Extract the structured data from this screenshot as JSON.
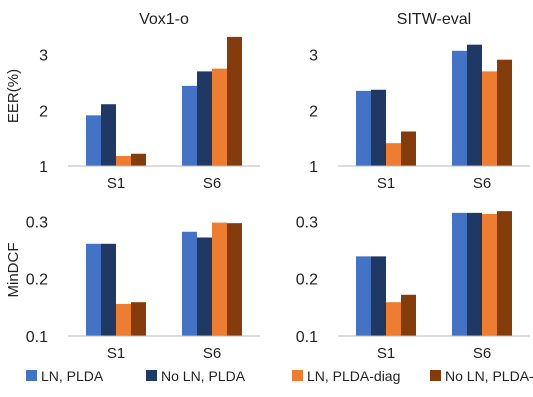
{
  "colors": {
    "ln_plda": "#4472C4",
    "no_ln_plda": "#203864",
    "ln_plda_diag": "#ED7D31",
    "no_ln_plda_diag": "#843C0C"
  },
  "row_labels": {
    "eer": "EER(%)",
    "mindcf": "MinDCF"
  },
  "legend": [
    {
      "name": "LN, PLDA",
      "color": "#4472C4"
    },
    {
      "name": "No LN, PLDA",
      "color": "#203864"
    },
    {
      "name": "LN, PLDA-diag",
      "color": "#ED7D31"
    },
    {
      "name": "No LN, PLDA-diag",
      "color": "#843C0C"
    }
  ],
  "chart_data": [
    {
      "type": "bar",
      "title": "Vox1-o",
      "ylabel": "EER(%)",
      "categories": [
        "S1",
        "S6"
      ],
      "ylim": [
        1,
        3.3
      ],
      "yticks": [
        "1",
        "2",
        "3"
      ],
      "series": [
        {
          "name": "LN, PLDA",
          "values": [
            1.91,
            2.44
          ]
        },
        {
          "name": "No LN, PLDA",
          "values": [
            2.11,
            2.7
          ]
        },
        {
          "name": "LN, PLDA-diag",
          "values": [
            1.18,
            2.75
          ]
        },
        {
          "name": "No LN, PLDA-diag",
          "values": [
            1.22,
            3.32
          ]
        }
      ]
    },
    {
      "type": "bar",
      "title": "SITW-eval",
      "ylabel": "",
      "categories": [
        "S1",
        "S6"
      ],
      "ylim": [
        1,
        3.3
      ],
      "yticks": [
        "1",
        "2",
        "3"
      ],
      "series": [
        {
          "name": "LN, PLDA",
          "values": [
            2.35,
            3.07
          ]
        },
        {
          "name": "No LN, PLDA",
          "values": [
            2.37,
            3.18
          ]
        },
        {
          "name": "LN, PLDA-diag",
          "values": [
            1.41,
            2.7
          ]
        },
        {
          "name": "No LN, PLDA-diag",
          "values": [
            1.62,
            2.91
          ]
        }
      ]
    },
    {
      "type": "bar",
      "title": "",
      "ylabel": "MinDCF",
      "categories": [
        "S1",
        "S6"
      ],
      "ylim": [
        0.1,
        0.32
      ],
      "yticks": [
        "0.1",
        "0.2",
        "0.3"
      ],
      "series": [
        {
          "name": "LN, PLDA",
          "values": [
            0.261,
            0.282
          ]
        },
        {
          "name": "No LN, PLDA",
          "values": [
            0.261,
            0.272
          ]
        },
        {
          "name": "LN, PLDA-diag",
          "values": [
            0.156,
            0.298
          ]
        },
        {
          "name": "No LN, PLDA-diag",
          "values": [
            0.159,
            0.297
          ]
        }
      ]
    },
    {
      "type": "bar",
      "title": "",
      "ylabel": "",
      "categories": [
        "S1",
        "S6"
      ],
      "ylim": [
        0.1,
        0.32
      ],
      "yticks": [
        "0.1",
        "0.2",
        "0.3"
      ],
      "series": [
        {
          "name": "LN, PLDA",
          "values": [
            0.239,
            0.315
          ]
        },
        {
          "name": "No LN, PLDA",
          "values": [
            0.239,
            0.315
          ]
        },
        {
          "name": "LN, PLDA-diag",
          "values": [
            0.159,
            0.313
          ]
        },
        {
          "name": "No LN, PLDA-diag",
          "values": [
            0.172,
            0.318
          ]
        }
      ]
    }
  ]
}
